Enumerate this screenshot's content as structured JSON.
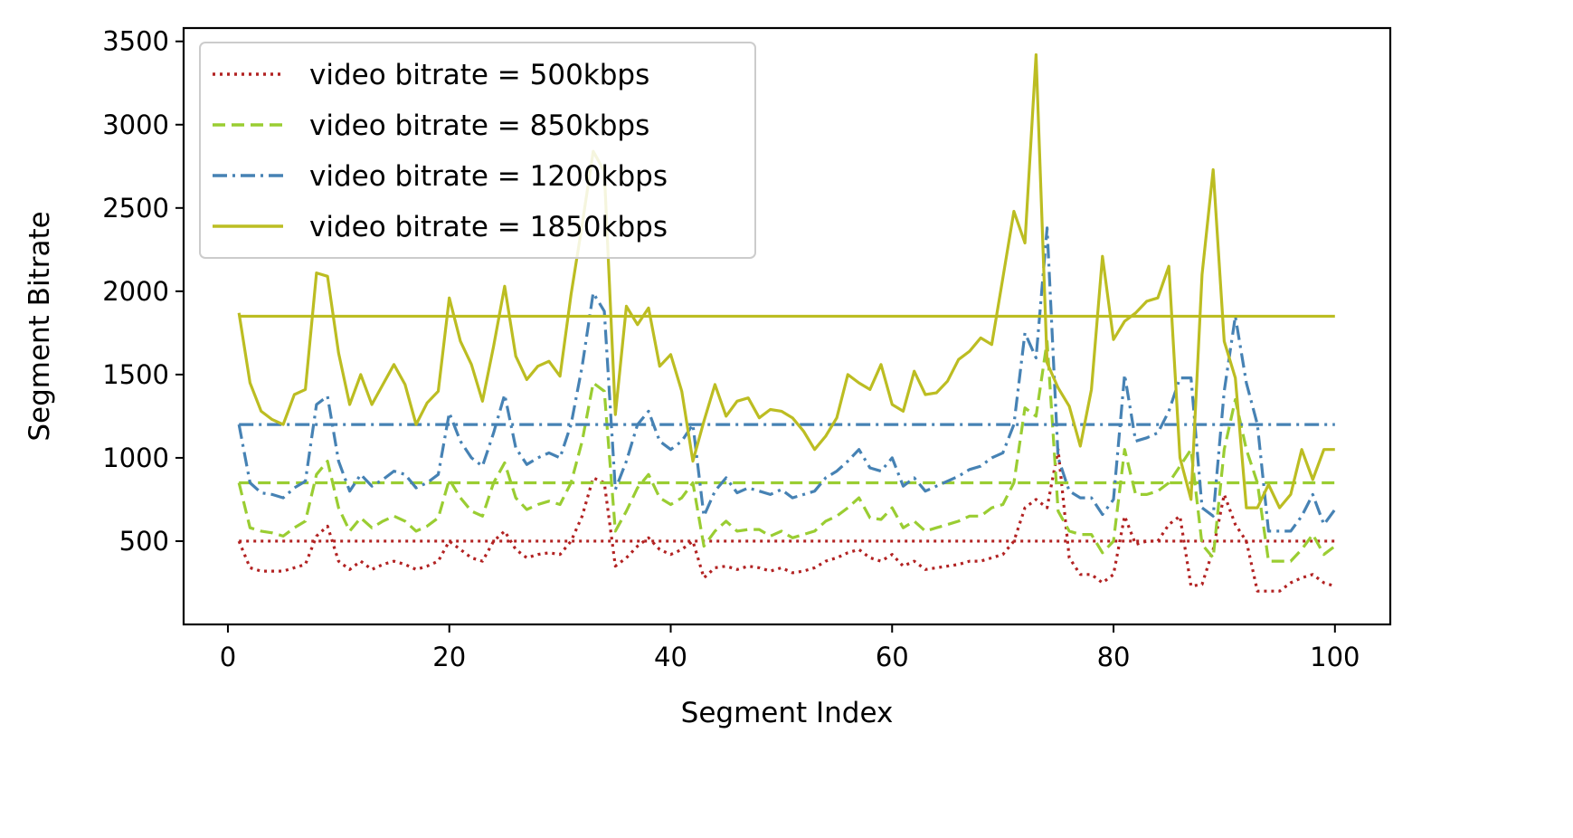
{
  "chart_data": {
    "type": "line",
    "title": "",
    "xlabel": "Segment Index",
    "ylabel": "Segment Bitrate",
    "xlim": [
      -4,
      105
    ],
    "ylim": [
      0,
      3580
    ],
    "xticks": [
      0,
      20,
      40,
      60,
      80,
      100
    ],
    "yticks": [
      500,
      1000,
      1500,
      2000,
      2500,
      3000,
      3500
    ],
    "grid": false,
    "legend_position": "upper-left",
    "x": [
      1,
      2,
      3,
      4,
      5,
      6,
      7,
      8,
      9,
      10,
      11,
      12,
      13,
      14,
      15,
      16,
      17,
      18,
      19,
      20,
      21,
      22,
      23,
      24,
      25,
      26,
      27,
      28,
      29,
      30,
      31,
      32,
      33,
      34,
      35,
      36,
      37,
      38,
      39,
      40,
      41,
      42,
      43,
      44,
      45,
      46,
      47,
      48,
      49,
      50,
      51,
      52,
      53,
      54,
      55,
      56,
      57,
      58,
      59,
      60,
      61,
      62,
      63,
      64,
      65,
      66,
      67,
      68,
      69,
      70,
      71,
      72,
      73,
      74,
      75,
      76,
      77,
      78,
      79,
      80,
      81,
      82,
      83,
      84,
      85,
      86,
      87,
      88,
      89,
      90,
      91,
      92,
      93,
      94,
      95,
      96,
      97,
      98,
      99,
      100
    ],
    "series": [
      {
        "name": "video bitrate = 500kbps",
        "color": "#b22222",
        "style": "dotted",
        "average": 500,
        "values": [
          500,
          340,
          320,
          320,
          320,
          340,
          360,
          530,
          590,
          380,
          330,
          380,
          330,
          360,
          380,
          360,
          330,
          350,
          380,
          500,
          450,
          400,
          380,
          500,
          560,
          450,
          400,
          420,
          430,
          420,
          500,
          650,
          880,
          850,
          350,
          400,
          470,
          520,
          450,
          420,
          450,
          500,
          280,
          340,
          350,
          330,
          350,
          340,
          320,
          340,
          310,
          320,
          340,
          380,
          400,
          430,
          450,
          400,
          380,
          420,
          350,
          380,
          330,
          340,
          350,
          360,
          380,
          380,
          400,
          420,
          500,
          700,
          750,
          700,
          1050,
          400,
          300,
          300,
          250,
          300,
          650,
          480,
          500,
          500,
          600,
          650,
          230,
          240,
          450,
          780,
          600,
          500,
          200,
          200,
          200,
          250,
          280,
          300,
          250,
          230
        ]
      },
      {
        "name": "video bitrate = 850kbps",
        "color": "#9acd32",
        "style": "dashed",
        "average": 850,
        "values": [
          850,
          580,
          560,
          550,
          530,
          580,
          620,
          900,
          980,
          700,
          560,
          640,
          580,
          620,
          650,
          620,
          560,
          590,
          640,
          870,
          760,
          680,
          650,
          850,
          970,
          760,
          690,
          720,
          740,
          720,
          850,
          1100,
          1450,
          1400,
          560,
          680,
          820,
          900,
          760,
          720,
          760,
          850,
          470,
          560,
          620,
          560,
          570,
          570,
          530,
          560,
          520,
          540,
          560,
          620,
          650,
          700,
          760,
          640,
          630,
          700,
          580,
          620,
          560,
          580,
          600,
          620,
          650,
          650,
          700,
          720,
          850,
          1300,
          1250,
          1700,
          680,
          560,
          540,
          540,
          430,
          500,
          1050,
          780,
          780,
          800,
          850,
          950,
          1050,
          480,
          400,
          1050,
          1350,
          1050,
          850,
          380,
          380,
          380,
          450,
          540,
          420,
          470
        ]
      },
      {
        "name": "video bitrate = 1200kbps",
        "color": "#4682b4",
        "style": "dashdot",
        "average": 1200,
        "values": [
          1200,
          850,
          790,
          780,
          760,
          820,
          860,
          1320,
          1370,
          980,
          800,
          900,
          830,
          870,
          920,
          900,
          820,
          850,
          900,
          1270,
          1100,
          1000,
          950,
          1150,
          1380,
          1060,
          960,
          1000,
          1030,
          1000,
          1200,
          1550,
          1990,
          1880,
          810,
          980,
          1200,
          1280,
          1100,
          1050,
          1100,
          1200,
          650,
          800,
          880,
          790,
          820,
          800,
          780,
          810,
          760,
          780,
          800,
          880,
          920,
          980,
          1050,
          940,
          920,
          1000,
          830,
          880,
          800,
          830,
          860,
          890,
          930,
          950,
          1000,
          1030,
          1200,
          1750,
          1600,
          2380,
          1000,
          800,
          760,
          760,
          660,
          750,
          1500,
          1100,
          1120,
          1150,
          1280,
          1480,
          1480,
          700,
          650,
          1400,
          1850,
          1450,
          1200,
          560,
          560,
          560,
          650,
          780,
          600,
          690
        ]
      },
      {
        "name": "video bitrate = 1850kbps",
        "color": "#bcbd22",
        "style": "solid",
        "average": 1850,
        "values": [
          1870,
          1450,
          1280,
          1230,
          1200,
          1380,
          1410,
          2110,
          2090,
          1630,
          1320,
          1500,
          1320,
          1440,
          1560,
          1440,
          1200,
          1330,
          1400,
          1960,
          1700,
          1560,
          1340,
          1670,
          2030,
          1610,
          1470,
          1550,
          1580,
          1490,
          1980,
          2400,
          2840,
          2720,
          1260,
          1910,
          1800,
          1900,
          1550,
          1620,
          1400,
          980,
          1220,
          1440,
          1250,
          1340,
          1360,
          1240,
          1290,
          1280,
          1240,
          1160,
          1050,
          1130,
          1240,
          1500,
          1450,
          1410,
          1560,
          1320,
          1280,
          1520,
          1380,
          1390,
          1460,
          1590,
          1640,
          1720,
          1680,
          2080,
          2480,
          2290,
          3420,
          1570,
          1420,
          1310,
          1070,
          1410,
          2210,
          1710,
          1820,
          1870,
          1940,
          1960,
          2150,
          1000,
          750,
          2100,
          2730,
          1700,
          1480,
          700,
          700,
          840,
          700,
          780,
          1050,
          870,
          1050,
          1050
        ]
      }
    ]
  }
}
